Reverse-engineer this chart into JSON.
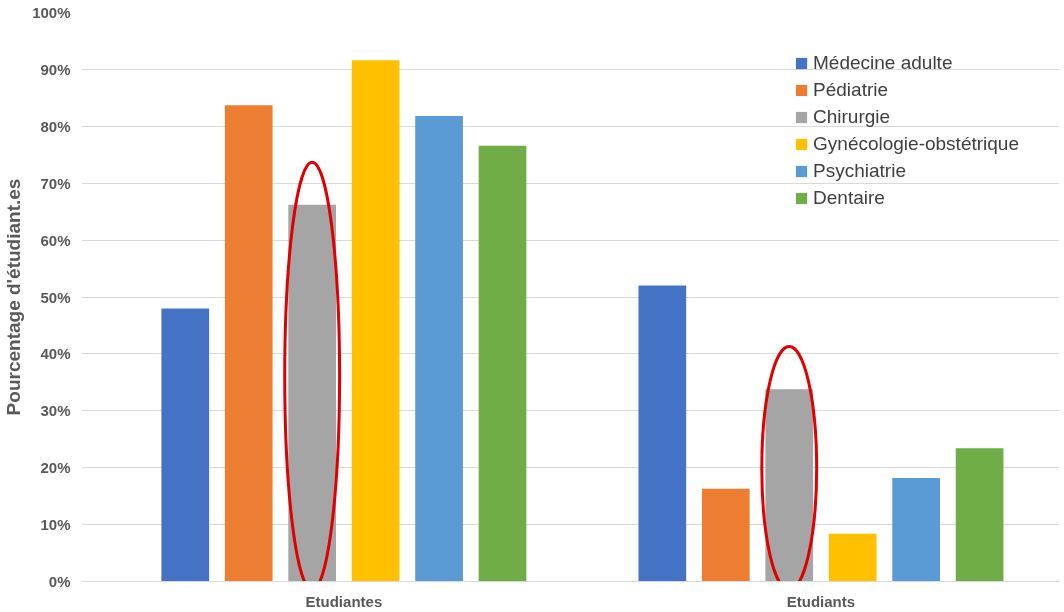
{
  "chart_data": {
    "type": "bar",
    "ylabel": "Pourcentage d'étudiant.es",
    "categories": [
      "Etudiantes",
      "Etudiants"
    ],
    "series": [
      {
        "name": "Médecine adulte",
        "color": "#4472c4",
        "values": [
          48,
          52
        ]
      },
      {
        "name": "Pédiatrie",
        "color": "#ed7d31",
        "values": [
          83.7,
          16.3
        ]
      },
      {
        "name": "Chirurgie",
        "color": "#a5a5a5",
        "values": [
          66.2,
          33.8
        ]
      },
      {
        "name": "Gynécologie-obstétrique",
        "color": "#ffc000",
        "values": [
          91.6,
          8.4
        ]
      },
      {
        "name": "Psychiatrie",
        "color": "#5b9bd5",
        "values": [
          81.8,
          18.2
        ]
      },
      {
        "name": "Dentaire",
        "color": "#70ad47",
        "values": [
          76.6,
          23.4
        ]
      }
    ],
    "ylim": [
      0,
      100
    ],
    "yticks": [
      {
        "value": 0,
        "label": "0%"
      },
      {
        "value": 10,
        "label": "10%"
      },
      {
        "value": 20,
        "label": "20%"
      },
      {
        "value": 30,
        "label": "30%"
      },
      {
        "value": 40,
        "label": "40%"
      },
      {
        "value": 50,
        "label": "50%"
      },
      {
        "value": 60,
        "label": "60%"
      },
      {
        "value": 70,
        "label": "70%"
      },
      {
        "value": 80,
        "label": "80%"
      },
      {
        "value": 90,
        "label": "90%"
      },
      {
        "value": 100,
        "label": "100%"
      }
    ],
    "grid": "y",
    "legend": "top right"
  }
}
